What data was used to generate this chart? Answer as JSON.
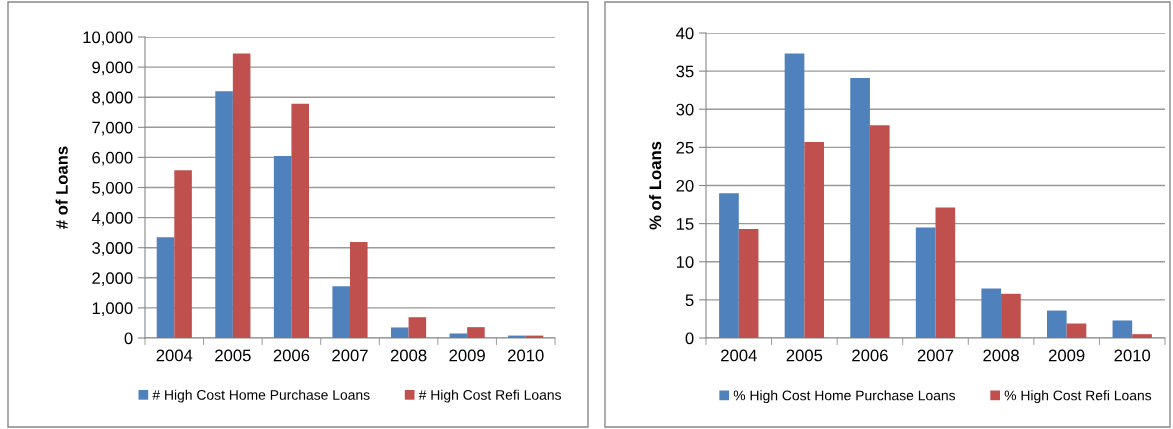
{
  "chart_data": [
    {
      "type": "bar",
      "categories": [
        "2004",
        "2005",
        "2006",
        "2007",
        "2008",
        "2009",
        "2010"
      ],
      "ylabel": "# of Loans",
      "ylim": [
        0,
        10000
      ],
      "yticks": [
        {
          "value": 0,
          "label": "0"
        },
        {
          "value": 1000,
          "label": "1,000"
        },
        {
          "value": 2000,
          "label": "2,000"
        },
        {
          "value": 3000,
          "label": "3,000"
        },
        {
          "value": 4000,
          "label": "4,000"
        },
        {
          "value": 5000,
          "label": "5,000"
        },
        {
          "value": 6000,
          "label": "6,000"
        },
        {
          "value": 7000,
          "label": "7,000"
        },
        {
          "value": 8000,
          "label": "8,000"
        },
        {
          "value": 9000,
          "label": "9,000"
        },
        {
          "value": 10000,
          "label": "10,000"
        }
      ],
      "grid": "y",
      "legend": "bottom",
      "series": [
        {
          "name": "# High Cost Home Purchase Loans",
          "color": "#4f81bd",
          "values": [
            3350,
            8200,
            6050,
            1720,
            350,
            150,
            80
          ]
        },
        {
          "name": "# High Cost Refi Loans",
          "color": "#c0504d",
          "values": [
            5570,
            9450,
            7780,
            3190,
            690,
            360,
            80
          ]
        }
      ]
    },
    {
      "type": "bar",
      "categories": [
        "2004",
        "2005",
        "2006",
        "2007",
        "2008",
        "2009",
        "2010"
      ],
      "ylabel": "% of Loans",
      "ylim": [
        0,
        40
      ],
      "yticks": [
        0,
        5,
        10,
        15,
        20,
        25,
        30,
        35,
        40
      ],
      "grid": "y",
      "legend": "bottom",
      "series": [
        {
          "name": "% High Cost Home Purchase Loans",
          "color": "#4f81bd",
          "values": [
            19.0,
            37.3,
            34.1,
            14.5,
            6.5,
            3.6,
            2.3
          ]
        },
        {
          "name": "% High Cost Refi Loans",
          "color": "#c0504d",
          "values": [
            14.3,
            25.7,
            27.9,
            17.1,
            5.8,
            1.9,
            0.5
          ]
        }
      ]
    }
  ]
}
